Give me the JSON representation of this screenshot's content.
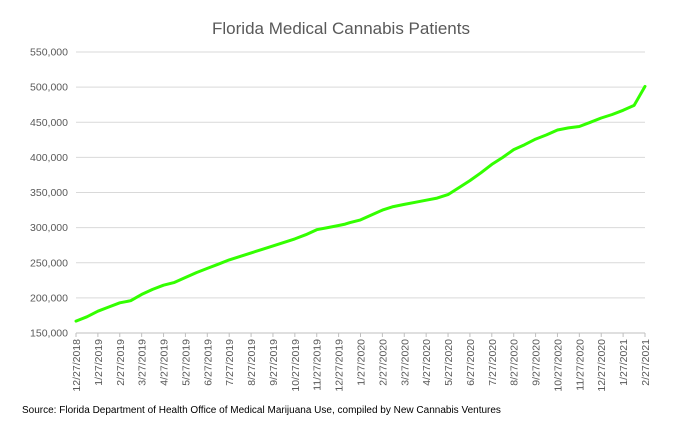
{
  "chart_data": {
    "type": "line",
    "title": "Florida Medical Cannabis Patients",
    "xlabel": "",
    "ylabel": "",
    "ylim": [
      150000,
      550000
    ],
    "yticks": [
      150000,
      200000,
      250000,
      300000,
      350000,
      400000,
      450000,
      500000,
      550000
    ],
    "ytick_labels": [
      "150,000",
      "200,000",
      "250,000",
      "300,000",
      "350,000",
      "400,000",
      "450,000",
      "500,000",
      "550,000"
    ],
    "x_tick_labels": [
      "12/27/2018",
      "1/27/2019",
      "2/27/2019",
      "3/27/2019",
      "4/27/2019",
      "5/27/2019",
      "6/27/2019",
      "7/27/2019",
      "8/27/2019",
      "9/27/2019",
      "10/27/2019",
      "11/27/2019",
      "12/27/2019",
      "1/27/2020",
      "2/27/2020",
      "3/27/2020",
      "4/27/2020",
      "5/27/2020",
      "6/27/2020",
      "7/27/2020",
      "8/27/2020",
      "9/27/2020",
      "10/27/2020",
      "11/27/2020",
      "12/27/2020",
      "1/27/2021",
      "2/27/2021"
    ],
    "grid": true,
    "legend": "none",
    "series": [
      {
        "name": "Florida Medical Cannabis Patients",
        "color": "#33ff00",
        "x": [
          0,
          0.5,
          1,
          1.5,
          2,
          2.5,
          3,
          3.5,
          4,
          4.5,
          5,
          5.5,
          6,
          6.5,
          7,
          7.5,
          8,
          8.5,
          9,
          9.5,
          10,
          10.5,
          11,
          11.5,
          12,
          12.3,
          12.5,
          13,
          13.5,
          14,
          14.5,
          15,
          15.5,
          16,
          16.5,
          17,
          17.5,
          18,
          18.5,
          19,
          19.5,
          20,
          20.5,
          21,
          21.5,
          22,
          22.5,
          23,
          23.5,
          24,
          24.5,
          25,
          25.5,
          26
        ],
        "values": [
          167000,
          173000,
          181000,
          187000,
          193000,
          196000,
          205000,
          212000,
          218000,
          222000,
          229000,
          236000,
          242000,
          248000,
          254000,
          259000,
          264000,
          269000,
          274000,
          279000,
          284000,
          290000,
          297000,
          300000,
          303000,
          305000,
          307000,
          311000,
          318000,
          325000,
          330000,
          333000,
          336000,
          339000,
          342000,
          347000,
          357000,
          367000,
          378000,
          390000,
          400000,
          411000,
          418000,
          426000,
          432000,
          439000,
          442000,
          444000,
          450000,
          456000,
          461000,
          467000,
          474000,
          501000
        ]
      }
    ]
  },
  "source": "Source: Florida Department of Health Office of Medical Marijuana Use, compiled by New Cannabis Ventures"
}
